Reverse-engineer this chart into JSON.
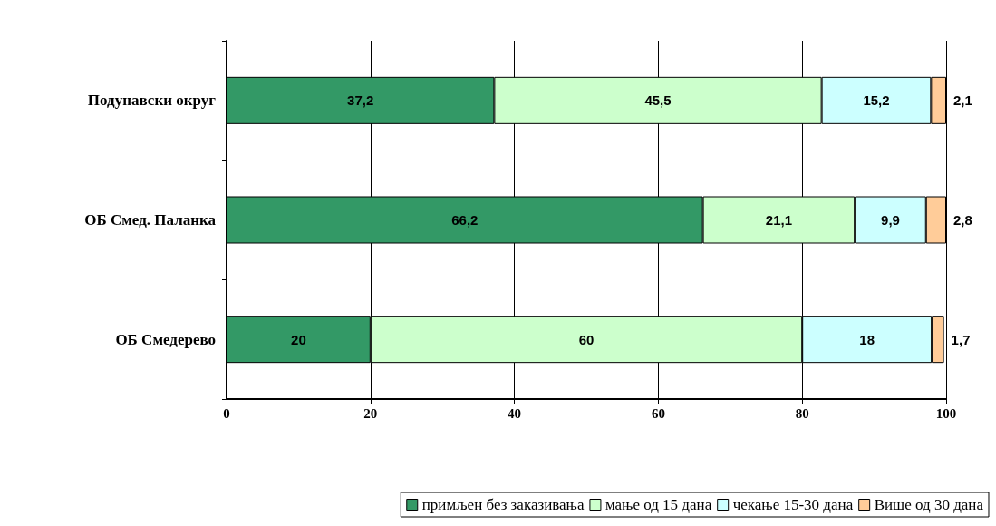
{
  "chart_data": {
    "type": "bar",
    "orientation": "horizontal",
    "stacked": true,
    "categories": [
      "Подунавски округ",
      "ОБ Смед. Паланка",
      "ОБ Смедерево"
    ],
    "series": [
      {
        "name": "примљен без заказивања",
        "color": "#339966",
        "values": [
          37.2,
          66.2,
          20
        ],
        "value_labels": [
          "37,2",
          "66,2",
          "20"
        ]
      },
      {
        "name": "мање од 15 дана",
        "color": "#ccffcc",
        "values": [
          45.5,
          21.1,
          60
        ],
        "value_labels": [
          "45,5",
          "21,1",
          "60"
        ]
      },
      {
        "name": "чекање 15-30 дана",
        "color": "#ccffff",
        "values": [
          15.2,
          9.9,
          18
        ],
        "value_labels": [
          "15,2",
          "9,9",
          "18"
        ]
      },
      {
        "name": "Више од 30 дана",
        "color": "#ffcc99",
        "values": [
          2.1,
          2.8,
          1.7
        ],
        "value_labels": [
          "2,1",
          "2,8",
          "1,7"
        ]
      }
    ],
    "xlim": [
      0,
      100
    ],
    "xticks": [
      0,
      20,
      40,
      60,
      80,
      100
    ],
    "grid": "x",
    "legend": "bottom"
  }
}
